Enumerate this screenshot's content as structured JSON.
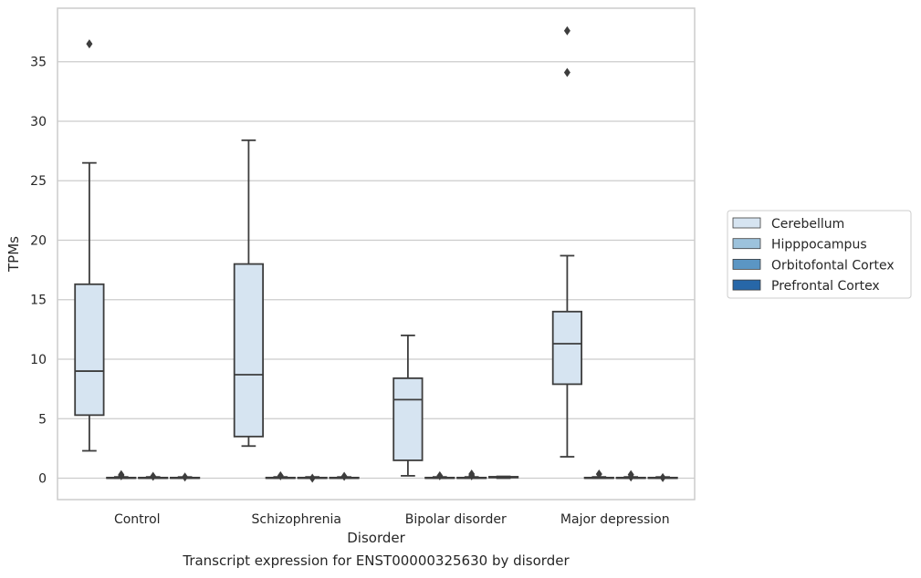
{
  "caption": "Transcript expression for ENST00000325630 by disorder",
  "chart_data": {
    "type": "box",
    "xlabel": "Disorder",
    "ylabel": "TPMs",
    "ylim": [
      -1.8,
      39.5
    ],
    "yticks": [
      0,
      5,
      10,
      15,
      20,
      25,
      30,
      35
    ],
    "grid": "horizontal",
    "legend_position": "right",
    "categories": [
      "Control",
      "Schizophrenia",
      "Bipolar disorder",
      "Major depression"
    ],
    "series": [
      {
        "name": "Cerebellum",
        "color": "#d6e4f1",
        "boxes": [
          {
            "whislo": 2.3,
            "q1": 5.3,
            "med": 9.0,
            "q3": 16.3,
            "whishi": 26.5,
            "fliers": [
              36.5
            ]
          },
          {
            "whislo": 2.7,
            "q1": 3.5,
            "med": 8.7,
            "q3": 18.0,
            "whishi": 28.4,
            "fliers": []
          },
          {
            "whislo": 0.2,
            "q1": 1.5,
            "med": 6.6,
            "q3": 8.4,
            "whishi": 12.0,
            "fliers": []
          },
          {
            "whislo": 1.8,
            "q1": 7.9,
            "med": 11.3,
            "q3": 14.0,
            "whishi": 18.7,
            "fliers": [
              37.6,
              34.1
            ]
          }
        ]
      },
      {
        "name": "Hipppocampus",
        "color": "#9cc2dc",
        "boxes": [
          {
            "whislo": 0.0,
            "q1": 0.0,
            "med": 0.0,
            "q3": 0.05,
            "whishi": 0.1,
            "fliers": [
              0.3,
              0.2
            ]
          },
          {
            "whislo": 0.0,
            "q1": 0.0,
            "med": 0.0,
            "q3": 0.05,
            "whishi": 0.1,
            "fliers": [
              0.2
            ]
          },
          {
            "whislo": 0.0,
            "q1": 0.0,
            "med": 0.0,
            "q3": 0.05,
            "whishi": 0.1,
            "fliers": [
              0.2
            ]
          },
          {
            "whislo": 0.0,
            "q1": 0.0,
            "med": 0.0,
            "q3": 0.05,
            "whishi": 0.1,
            "fliers": [
              0.35
            ]
          }
        ]
      },
      {
        "name": "Orbitofontal Cortex",
        "color": "#5b96c4",
        "boxes": [
          {
            "whislo": 0.0,
            "q1": 0.0,
            "med": 0.0,
            "q3": 0.05,
            "whishi": 0.1,
            "fliers": [
              0.15
            ]
          },
          {
            "whislo": 0.0,
            "q1": 0.0,
            "med": 0.0,
            "q3": 0.05,
            "whishi": 0.1,
            "fliers": [
              0.0
            ]
          },
          {
            "whislo": 0.0,
            "q1": 0.0,
            "med": 0.0,
            "q3": 0.05,
            "whishi": 0.1,
            "fliers": [
              0.2,
              0.35
            ]
          },
          {
            "whislo": 0.0,
            "q1": 0.0,
            "med": 0.0,
            "q3": 0.05,
            "whishi": 0.1,
            "fliers": [
              0.3,
              0.1
            ]
          }
        ]
      },
      {
        "name": "Prefrontal Cortex",
        "color": "#2767a8",
        "boxes": [
          {
            "whislo": 0.0,
            "q1": 0.0,
            "med": 0.0,
            "q3": 0.05,
            "whishi": 0.1,
            "fliers": [
              0.1
            ]
          },
          {
            "whislo": 0.0,
            "q1": 0.0,
            "med": 0.0,
            "q3": 0.05,
            "whishi": 0.1,
            "fliers": [
              0.15
            ]
          },
          {
            "whislo": 0.0,
            "q1": 0.05,
            "med": 0.08,
            "q3": 0.12,
            "whishi": 0.15,
            "fliers": []
          },
          {
            "whislo": 0.0,
            "q1": 0.0,
            "med": 0.0,
            "q3": 0.05,
            "whishi": 0.1,
            "fliers": [
              0.05
            ]
          }
        ]
      }
    ]
  }
}
